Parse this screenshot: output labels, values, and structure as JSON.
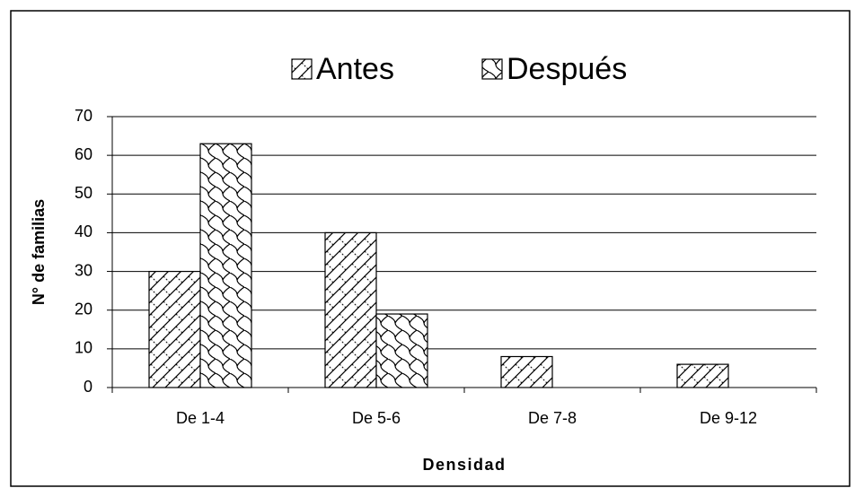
{
  "chart_data": {
    "type": "bar",
    "x_label": "Densidad",
    "y_label": "N° de familias",
    "categories": [
      "De 1-4",
      "De 5-6",
      "De 7-8",
      "De 9-12"
    ],
    "series": [
      {
        "name": "Antes",
        "values": [
          30,
          40,
          8,
          6
        ]
      },
      {
        "name": "Después",
        "values": [
          63,
          19,
          0,
          0
        ]
      }
    ],
    "ylim": [
      0,
      70
    ],
    "yticks": [
      0,
      10,
      20,
      30,
      40,
      50,
      60,
      70
    ],
    "grid": true,
    "legend": "top"
  }
}
